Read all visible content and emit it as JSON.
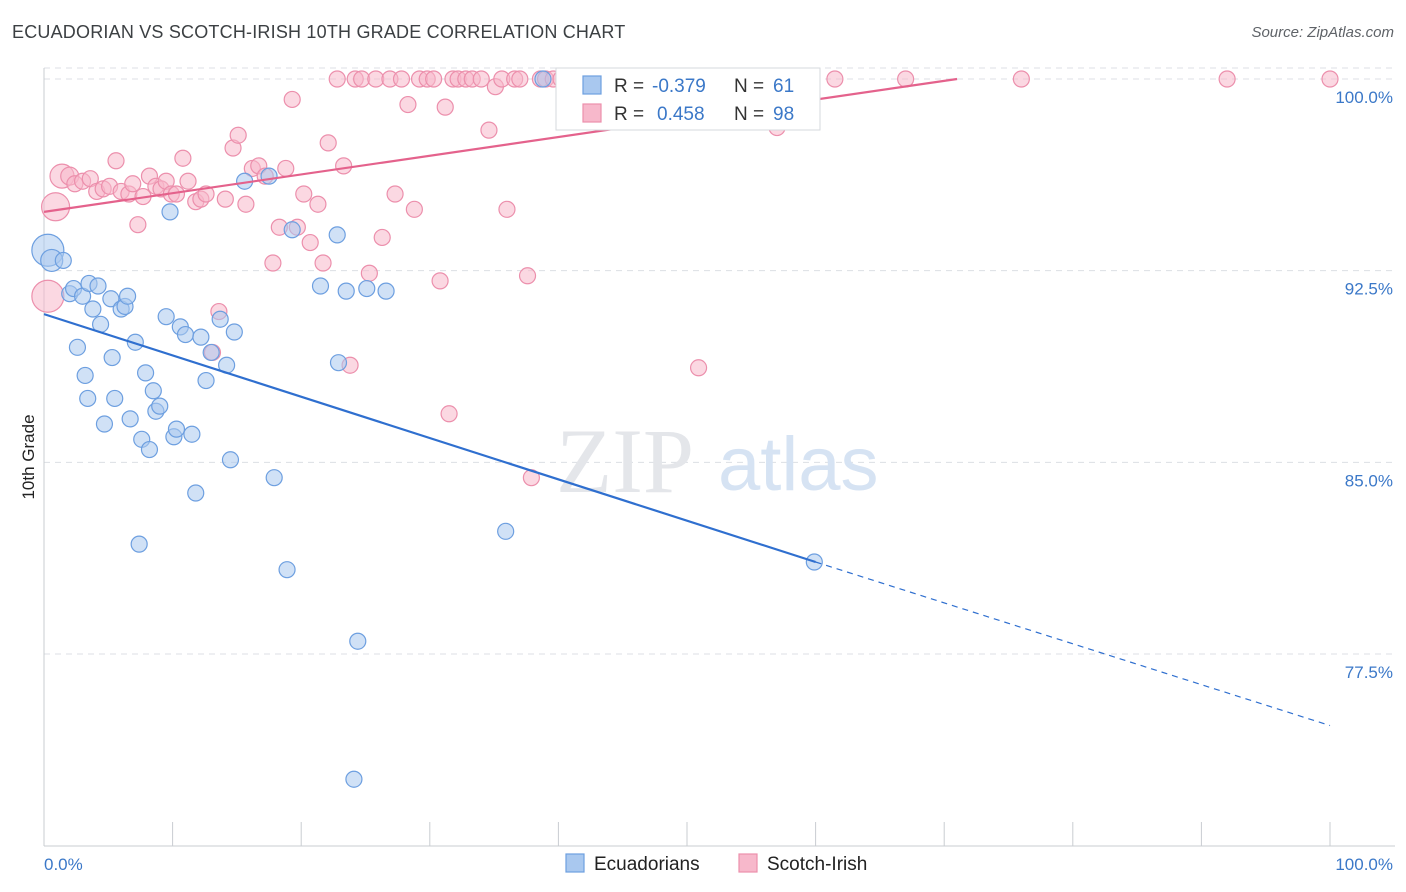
{
  "header": {
    "title": "ECUADORIAN VS SCOTCH-IRISH 10TH GRADE CORRELATION CHART",
    "source": "Source: ZipAtlas.com"
  },
  "watermark": {
    "zip": "ZIP",
    "atlas": "atlas"
  },
  "colors": {
    "blue_fill": "#a9c8ef",
    "blue_stroke": "#6d9fe0",
    "blue_line": "#2f6fcf",
    "pink_fill": "#f7b8cb",
    "pink_stroke": "#ec8fac",
    "pink_line": "#e4628c",
    "grid": "#dcdfe4",
    "tick_text": "#3b78c8"
  },
  "legend": {
    "r_label": "R =",
    "n_label": "N =",
    "rows": [
      {
        "r": "-0.379",
        "n": "61"
      },
      {
        "r": "0.458",
        "n": "98"
      }
    ]
  },
  "chart_data": {
    "type": "scatter",
    "title": "ECUADORIAN VS SCOTCH-IRISH 10TH GRADE CORRELATION CHART",
    "xlabel": "",
    "ylabel": "10th Grade",
    "xlim": [
      0,
      100
    ],
    "ylim": [
      71.5,
      101
    ],
    "x_tick_labels": [
      "0.0%",
      "100.0%"
    ],
    "y_ticks": [
      77.5,
      85.0,
      92.5,
      100.0
    ],
    "y_tick_labels": [
      "77.5%",
      "85.0%",
      "92.5%",
      "100.0%"
    ],
    "grid": true,
    "legend_position": "top-center",
    "series": [
      {
        "name": "Ecuadorians",
        "color": "#a9c8ef",
        "trend": {
          "x0": 0,
          "y0": 90.8,
          "x1": 60,
          "y1": 81.1,
          "dashed_to_x": 100,
          "dashed_to_y": 74.7
        },
        "points": [
          [
            0.3,
            93.3,
            16
          ],
          [
            0.6,
            92.9,
            11
          ],
          [
            1.5,
            92.9,
            8
          ],
          [
            2.0,
            91.6,
            8
          ],
          [
            2.3,
            91.8,
            8
          ],
          [
            2.6,
            89.5,
            8
          ],
          [
            3.0,
            91.5,
            8
          ],
          [
            3.2,
            88.4,
            8
          ],
          [
            3.4,
            87.5,
            8
          ],
          [
            3.5,
            92.0,
            8
          ],
          [
            3.8,
            91.0,
            8
          ],
          [
            4.2,
            91.9,
            8
          ],
          [
            4.4,
            90.4,
            8
          ],
          [
            4.7,
            86.5,
            8
          ],
          [
            5.2,
            91.4,
            8
          ],
          [
            5.3,
            89.1,
            8
          ],
          [
            5.5,
            87.5,
            8
          ],
          [
            6.0,
            91.0,
            8
          ],
          [
            6.3,
            91.1,
            8
          ],
          [
            6.5,
            91.5,
            8
          ],
          [
            6.7,
            86.7,
            8
          ],
          [
            7.1,
            89.7,
            8
          ],
          [
            7.4,
            81.8,
            8
          ],
          [
            7.6,
            85.9,
            8
          ],
          [
            7.9,
            88.5,
            8
          ],
          [
            8.2,
            85.5,
            8
          ],
          [
            8.5,
            87.8,
            8
          ],
          [
            8.7,
            87.0,
            8
          ],
          [
            9.0,
            87.2,
            8
          ],
          [
            9.5,
            90.7,
            8
          ],
          [
            9.8,
            94.8,
            8
          ],
          [
            10.1,
            86.0,
            8
          ],
          [
            10.3,
            86.3,
            8
          ],
          [
            10.6,
            90.3,
            8
          ],
          [
            11.0,
            90.0,
            8
          ],
          [
            11.5,
            86.1,
            8
          ],
          [
            11.8,
            83.8,
            8
          ],
          [
            12.2,
            89.9,
            8
          ],
          [
            12.6,
            88.2,
            8
          ],
          [
            13.0,
            89.3,
            8
          ],
          [
            13.7,
            90.6,
            8
          ],
          [
            14.2,
            88.8,
            8
          ],
          [
            14.5,
            85.1,
            8
          ],
          [
            14.8,
            90.1,
            8
          ],
          [
            15.6,
            96.0,
            8
          ],
          [
            17.5,
            96.2,
            8
          ],
          [
            17.9,
            84.4,
            8
          ],
          [
            18.9,
            80.8,
            8
          ],
          [
            19.3,
            94.1,
            8
          ],
          [
            21.5,
            91.9,
            8
          ],
          [
            22.8,
            93.9,
            8
          ],
          [
            22.9,
            88.9,
            8
          ],
          [
            23.5,
            91.7,
            8
          ],
          [
            24.1,
            72.6,
            8
          ],
          [
            24.4,
            78.0,
            8
          ],
          [
            25.1,
            91.8,
            8
          ],
          [
            26.6,
            91.7,
            8
          ],
          [
            35.9,
            82.3,
            8
          ],
          [
            38.8,
            100.0,
            8
          ],
          [
            41.3,
            100.0,
            8
          ],
          [
            59.9,
            81.1,
            8
          ]
        ]
      },
      {
        "name": "Scotch-Irish",
        "color": "#f7b8cb",
        "trend": {
          "x0": 0,
          "y0": 94.8,
          "x1": 71,
          "y1": 100.0
        },
        "points": [
          [
            0.3,
            91.5,
            16
          ],
          [
            0.9,
            95.0,
            14
          ],
          [
            1.4,
            96.2,
            12
          ],
          [
            2.0,
            96.2,
            9
          ],
          [
            2.4,
            95.9,
            8
          ],
          [
            3.0,
            96.0,
            8
          ],
          [
            3.6,
            96.1,
            8
          ],
          [
            4.1,
            95.6,
            8
          ],
          [
            4.6,
            95.7,
            8
          ],
          [
            5.1,
            95.8,
            8
          ],
          [
            5.6,
            96.8,
            8
          ],
          [
            6.0,
            95.6,
            8
          ],
          [
            6.6,
            95.5,
            8
          ],
          [
            6.9,
            95.9,
            8
          ],
          [
            7.3,
            94.3,
            8
          ],
          [
            7.7,
            95.4,
            8
          ],
          [
            8.2,
            96.2,
            8
          ],
          [
            8.7,
            95.8,
            8
          ],
          [
            9.1,
            95.7,
            8
          ],
          [
            9.5,
            96.0,
            8
          ],
          [
            9.9,
            95.5,
            8
          ],
          [
            10.3,
            95.5,
            8
          ],
          [
            10.8,
            96.9,
            8
          ],
          [
            11.2,
            96.0,
            8
          ],
          [
            11.8,
            95.2,
            8
          ],
          [
            12.2,
            95.3,
            8
          ],
          [
            12.6,
            95.5,
            8
          ],
          [
            13.1,
            89.3,
            8
          ],
          [
            13.6,
            90.9,
            8
          ],
          [
            14.1,
            95.3,
            8
          ],
          [
            14.7,
            97.3,
            8
          ],
          [
            15.1,
            97.8,
            8
          ],
          [
            15.7,
            95.1,
            8
          ],
          [
            16.2,
            96.5,
            8
          ],
          [
            16.7,
            96.6,
            8
          ],
          [
            17.2,
            96.2,
            8
          ],
          [
            17.8,
            92.8,
            8
          ],
          [
            18.3,
            94.2,
            8
          ],
          [
            18.8,
            96.5,
            8
          ],
          [
            19.3,
            99.2,
            8
          ],
          [
            19.7,
            94.2,
            8
          ],
          [
            20.2,
            95.5,
            8
          ],
          [
            20.7,
            93.6,
            8
          ],
          [
            21.3,
            95.1,
            8
          ],
          [
            21.7,
            92.8,
            8
          ],
          [
            22.1,
            97.5,
            8
          ],
          [
            22.8,
            100.0,
            8
          ],
          [
            23.3,
            96.6,
            8
          ],
          [
            23.8,
            88.8,
            8
          ],
          [
            24.2,
            100.0,
            8
          ],
          [
            24.7,
            100.0,
            8
          ],
          [
            25.3,
            92.4,
            8
          ],
          [
            25.8,
            100.0,
            8
          ],
          [
            26.3,
            93.8,
            8
          ],
          [
            26.9,
            100.0,
            8
          ],
          [
            27.3,
            95.5,
            8
          ],
          [
            27.8,
            100.0,
            8
          ],
          [
            28.3,
            99.0,
            8
          ],
          [
            28.8,
            94.9,
            8
          ],
          [
            29.2,
            100.0,
            8
          ],
          [
            29.8,
            100.0,
            8
          ],
          [
            30.3,
            100.0,
            8
          ],
          [
            30.8,
            92.1,
            8
          ],
          [
            31.2,
            98.9,
            8
          ],
          [
            31.5,
            86.9,
            8
          ],
          [
            31.8,
            100.0,
            8
          ],
          [
            32.2,
            100.0,
            8
          ],
          [
            32.8,
            100.0,
            8
          ],
          [
            33.3,
            100.0,
            8
          ],
          [
            34.0,
            100.0,
            8
          ],
          [
            34.6,
            98.0,
            8
          ],
          [
            35.1,
            99.7,
            8
          ],
          [
            35.6,
            100.0,
            8
          ],
          [
            36.0,
            94.9,
            8
          ],
          [
            36.6,
            100.0,
            8
          ],
          [
            37.0,
            100.0,
            8
          ],
          [
            37.6,
            92.3,
            8
          ],
          [
            37.9,
            84.4,
            8
          ],
          [
            38.6,
            100.0,
            8
          ],
          [
            39.0,
            100.0,
            8
          ],
          [
            39.6,
            100.0,
            8
          ],
          [
            40.2,
            100.0,
            8
          ],
          [
            40.6,
            100.0,
            8
          ],
          [
            41.6,
            100.0,
            8
          ],
          [
            43.0,
            100.0,
            8
          ],
          [
            44.0,
            100.0,
            8
          ],
          [
            45.5,
            100.0,
            8
          ],
          [
            46.0,
            100.0,
            8
          ],
          [
            50.5,
            100.0,
            8
          ],
          [
            50.9,
            88.7,
            8
          ],
          [
            53.3,
            100.0,
            8
          ],
          [
            56.0,
            100.0,
            8
          ],
          [
            57.0,
            98.1,
            8
          ],
          [
            61.5,
            100.0,
            8
          ],
          [
            67.0,
            100.0,
            8
          ],
          [
            76.0,
            100.0,
            8
          ],
          [
            92.0,
            100.0,
            8
          ],
          [
            100.0,
            100.0,
            8
          ]
        ]
      }
    ]
  }
}
